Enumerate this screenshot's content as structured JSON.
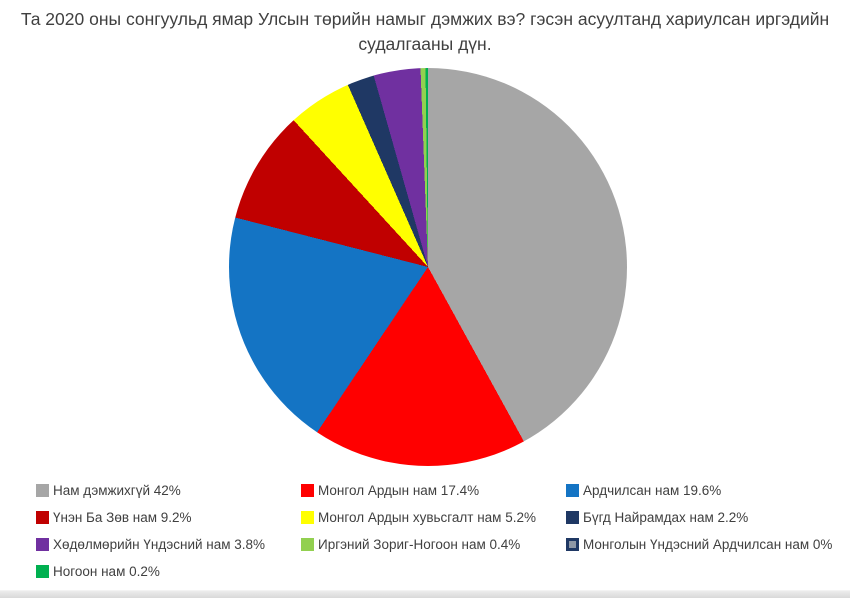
{
  "chart_data": {
    "type": "pie",
    "title": "Та 2020 оны сонгуульд ямар Улсын төрийн намыг дэмжих вэ? гэсэн асуултанд хариулсан иргэдийн судалгааны дүн.",
    "legend_position": "bottom",
    "start_angle_deg": 0,
    "direction": "clockwise",
    "slices": [
      {
        "name": "Нам дэмжихгүй",
        "percent": 42,
        "display": "Нам дэмжихгүй 42%",
        "color": "#A6A6A6"
      },
      {
        "name": "Монгол Ардын нам",
        "percent": 17.4,
        "display": "Монгол Ардын нам 17.4%",
        "color": "#FF0000"
      },
      {
        "name": "Ардчилсан нам",
        "percent": 19.6,
        "display": "Ардчилсан нам 19.6%",
        "color": "#1474C4"
      },
      {
        "name": "Үнэн Ба Зөв нам",
        "percent": 9.2,
        "display": "Үнэн Ба Зөв нам 9.2%",
        "color": "#C00000"
      },
      {
        "name": "Монгол Ардын хувьсгалт нам",
        "percent": 5.2,
        "display": "Монгол Ардын хувьсгалт нам 5.2%",
        "color": "#FFFF00"
      },
      {
        "name": "Бүгд Найрамдах нам",
        "percent": 2.2,
        "display": "Бүгд Найрамдах нам 2.2%",
        "color": "#1F3864"
      },
      {
        "name": "Хөдөлмөрийн Үндэсний нам",
        "percent": 3.8,
        "display": "Хөдөлмөрийн Үндэсний нам 3.8%",
        "color": "#7030A0"
      },
      {
        "name": "Иргэний Зориг-Ногоон нам",
        "percent": 0.4,
        "display": "Иргэний Зориг-Ногоон нам 0.4%",
        "color": "#92D050"
      },
      {
        "name": "Монголын Үндэсний Ардчилсан нам",
        "percent": 0,
        "display": "Монголын Үндэсний Ардчилсан нам 0%",
        "color": "#1F3864",
        "swatch": "hollow"
      },
      {
        "name": "Ногоон нам",
        "percent": 0.2,
        "display": "Ногоон нам 0.2%",
        "color": "#00B050"
      }
    ]
  }
}
